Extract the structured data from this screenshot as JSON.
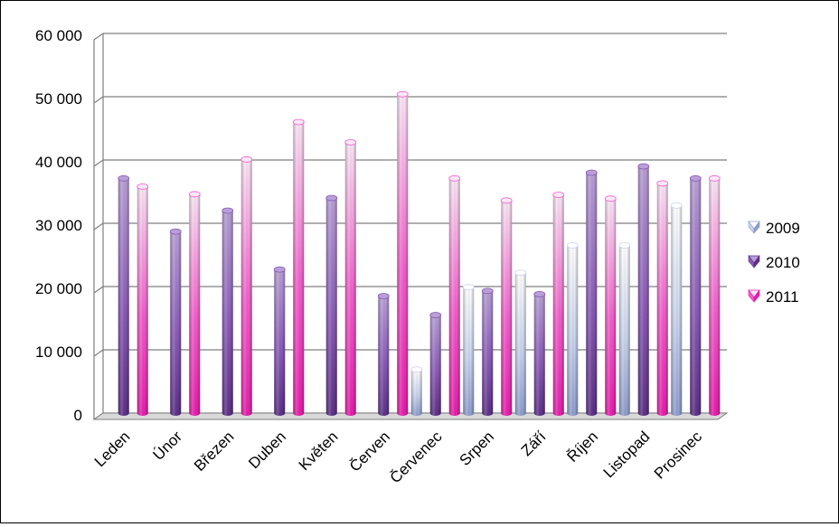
{
  "chart_data": {
    "type": "bar",
    "title": "",
    "xlabel": "",
    "ylabel": "",
    "ylim": [
      0,
      60000
    ],
    "yticks": [
      0,
      10000,
      20000,
      30000,
      40000,
      50000,
      60000
    ],
    "ytick_labels": [
      "0",
      "10 000",
      "20 000",
      "30 000",
      "40 000",
      "50 000",
      "60 000"
    ],
    "grid": true,
    "legend_position": "right",
    "categories": [
      "Leden",
      "Únor",
      "Březen",
      "Duben",
      "Květen",
      "Červen",
      "Červenec",
      "Srpen",
      "Září",
      "Říjen",
      "Listopad",
      "Prosinec"
    ],
    "series": [
      {
        "name": "2009",
        "values": [
          0,
          0,
          0,
          0,
          0,
          0,
          6900,
          19900,
          22200,
          26500,
          26500,
          32800
        ]
      },
      {
        "name": "2010",
        "values": [
          37100,
          28700,
          32000,
          22700,
          34000,
          18500,
          15500,
          19300,
          18800,
          38000,
          39000,
          37100
        ]
      },
      {
        "name": "2011",
        "values": [
          35800,
          34600,
          40100,
          46000,
          42800,
          50400,
          37100,
          33600,
          34500,
          33900,
          36300,
          37100
        ]
      }
    ],
    "colors": {
      "2009": {
        "light": "#ffffff",
        "mid": "#c9d4ee",
        "dark": "#8e9ccd"
      },
      "2010": {
        "light": "#b89fd6",
        "mid": "#8a5bb8",
        "dark": "#5b2f86"
      },
      "2011": {
        "light": "#fbe7f6",
        "mid": "#f25fcb",
        "dark": "#e51cab"
      }
    }
  }
}
